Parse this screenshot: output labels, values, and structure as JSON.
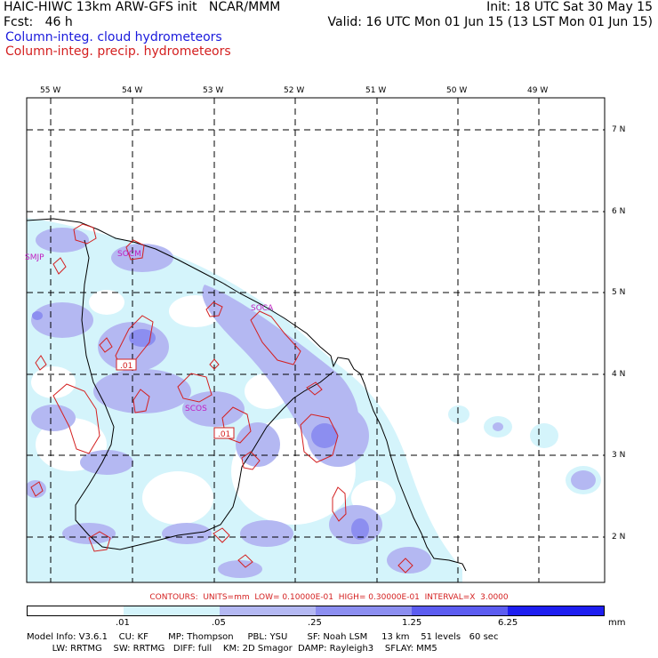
{
  "header": {
    "title": "HAIC-HIWC 13km ARW-GFS init   NCAR/MMM",
    "fcst": "Fcst:   46 h",
    "init": "Init: 18 UTC Sat 30 May 15",
    "valid": "Valid: 16 UTC Mon 01 Jun 15 (13 LST Mon 01 Jun 15)",
    "legend_cloud": "Column-integ. cloud hydrometeors",
    "legend_precip": "Column-integ. precip. hydrometeors"
  },
  "map": {
    "lon_labels": [
      "55 W",
      "54 W",
      "53 W",
      "52 W",
      "51 W",
      "50 W",
      "49 W"
    ],
    "lat_labels": [
      "7 N",
      "6 N",
      "5 N",
      "4 N",
      "3 N",
      "2 N"
    ],
    "stations": [
      "SMJP",
      "SOCM",
      "SOCA",
      "SCOS"
    ],
    "contour_labels": [
      ".01",
      ".01"
    ]
  },
  "contour_info": "CONTOURS:  UNITS=mm  LOW= 0.10000E-01  HIGH= 0.30000E-01  INTERVAL=X  3.0000",
  "colorbar": {
    "labels": [
      ".01",
      ".05",
      ".25",
      "1.25",
      "6.25"
    ],
    "units": "mm",
    "colors": [
      "#ffffff",
      "#d4f4fb",
      "#b4b8f2",
      "#8c8ef0",
      "#5c5cf0",
      "#1e1ef0"
    ]
  },
  "model_info": {
    "line1": "Model Info: V3.6.1    CU: KF       MP: Thompson     PBL: YSU       SF: Noah LSM     13 km    51 levels   60 sec",
    "line2": "         LW: RRTMG    SW: RRTMG   DIFF: full    KM: 2D Smagor  DAMP: Rayleigh3    SFLAY: MM5"
  }
}
